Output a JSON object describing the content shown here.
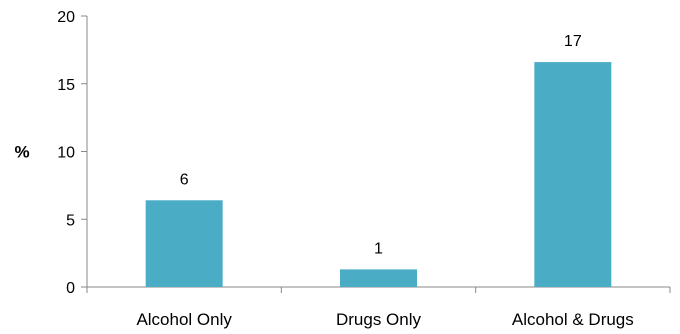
{
  "chart_data": {
    "type": "bar",
    "categories": [
      "Alcohol Only",
      "Drugs Only",
      "Alcohol & Drugs"
    ],
    "values": [
      6.4,
      1.3,
      16.6
    ],
    "data_labels": [
      "6",
      "1",
      "17"
    ],
    "ylabel": "%",
    "xlabel": "",
    "ylim": [
      0,
      20
    ],
    "yticks": [
      0,
      5,
      10,
      15,
      20
    ],
    "ytick_labels": [
      "0",
      "5",
      "10",
      "15",
      "20"
    ],
    "grid": false,
    "legend": "none",
    "bar_color": "#4BACC6"
  }
}
